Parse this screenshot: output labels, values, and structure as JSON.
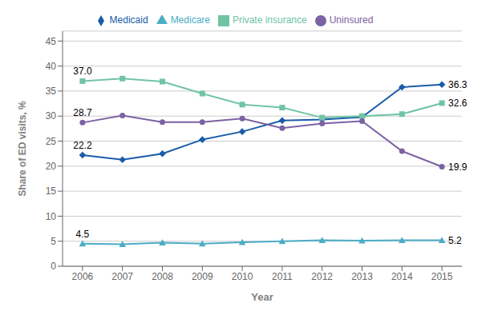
{
  "chart_data": {
    "type": "line",
    "xlabel": "Year",
    "ylabel": "Share of ED visits, %",
    "x": [
      2006,
      2007,
      2008,
      2009,
      2010,
      2011,
      2012,
      2013,
      2014,
      2015
    ],
    "xlim": [
      2005.5,
      2015.5
    ],
    "xticks": [
      2006,
      2007,
      2008,
      2009,
      2010,
      2011,
      2012,
      2013,
      2014,
      2015
    ],
    "ylim": [
      0,
      47
    ],
    "yticks": [
      0,
      5,
      10,
      15,
      20,
      25,
      30,
      35,
      40,
      45
    ],
    "grid": true,
    "legend": "top",
    "series": [
      {
        "name": "Medicaid",
        "color": "#1a5ca8",
        "marker": "diamond",
        "values": [
          22.2,
          21.3,
          22.5,
          25.3,
          26.9,
          29.1,
          29.3,
          29.8,
          35.8,
          36.3
        ]
      },
      {
        "name": "Private insurance",
        "color": "#70c4a4",
        "marker": "square",
        "values": [
          37.0,
          37.5,
          36.9,
          34.5,
          32.3,
          31.7,
          29.7,
          30.0,
          30.4,
          32.6
        ]
      },
      {
        "name": "Medicare",
        "color": "#4bacc6",
        "marker": "triangle",
        "values": [
          4.5,
          4.4,
          4.7,
          4.5,
          4.8,
          5.0,
          5.2,
          5.1,
          5.2,
          5.2
        ]
      },
      {
        "name": "Uninsured",
        "color": "#7b62a3",
        "marker": "circle",
        "values": [
          28.7,
          30.1,
          28.8,
          28.8,
          29.5,
          27.6,
          28.5,
          29.0,
          23.0,
          19.9
        ]
      }
    ],
    "annotations": [
      {
        "text": "22.2",
        "x": 2006,
        "y": 22.2
      },
      {
        "text": "37.0",
        "x": 2006,
        "y": 37.0
      },
      {
        "text": "4.5",
        "x": 2006,
        "y": 4.5
      },
      {
        "text": "28.7",
        "x": 2006,
        "y": 28.7
      },
      {
        "text": "36.3",
        "x": 2015,
        "y": 36.3
      },
      {
        "text": "32.6",
        "x": 2015,
        "y": 32.6
      },
      {
        "text": "5.2",
        "x": 2015,
        "y": 5.2
      },
      {
        "text": "19.9",
        "x": 2015,
        "y": 19.9
      }
    ]
  }
}
